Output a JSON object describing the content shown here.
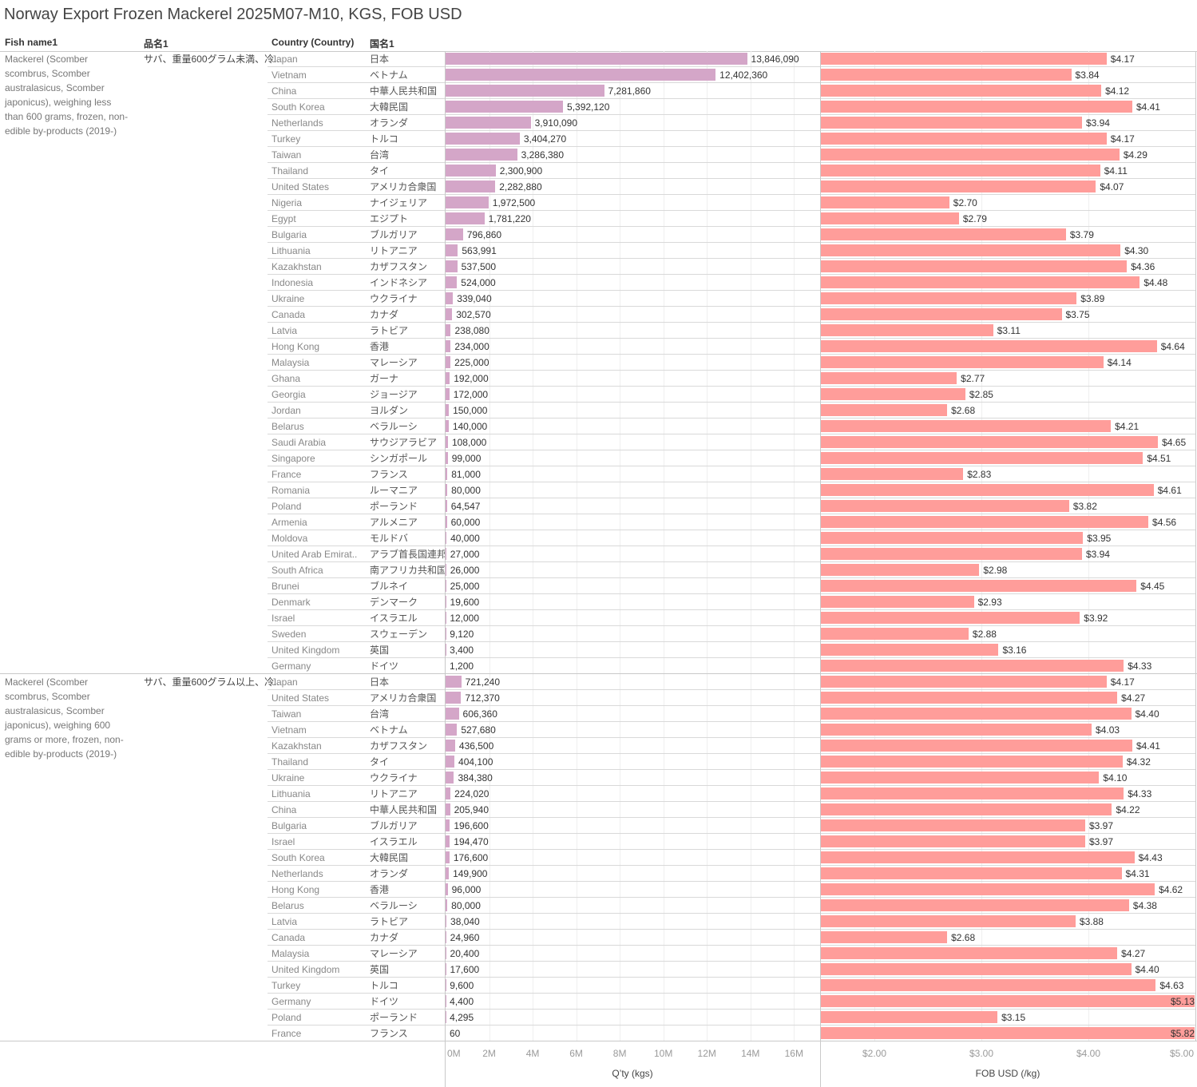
{
  "table_headers": {
    "fish_name": "Fish name1",
    "hinmei": "品名1",
    "country": "Country (Country)",
    "country_jp": "国名1"
  },
  "chart_data": {
    "type": "bar",
    "title": "Norway Export Frozen Mackerel 2025M07-M10, KGS, FOB USD",
    "grid": true,
    "measures": [
      {
        "key": "qty",
        "axis_label": "Q’ty (kgs)",
        "range": [
          0,
          17200000
        ],
        "ticks": [
          0,
          2000000,
          4000000,
          6000000,
          8000000,
          10000000,
          12000000,
          14000000,
          16000000
        ],
        "tick_labels": [
          "0M",
          "2M",
          "4M",
          "6M",
          "8M",
          "10M",
          "12M",
          "14M",
          "16M"
        ],
        "color": "#D4A6C8"
      },
      {
        "key": "fob",
        "axis_label": "FOB USD (/kg)",
        "range": [
          1.5,
          5.0
        ],
        "ticks": [
          2,
          3,
          4,
          5
        ],
        "tick_labels": [
          "$2.00",
          "$3.00",
          "$4.00",
          "$5.00"
        ],
        "color": "#FF9D9A"
      }
    ],
    "groups": [
      {
        "fish_name": "Mackerel (Scomber scombrus, Scomber australasicus, Scomber japonicus), weighing less than 600 grams, frozen, non-edible by-products (2019-)",
        "hinmei": "サバ、重量600グラム未満、冷..",
        "rows": [
          {
            "country": "Japan",
            "country_jp": "日本",
            "qty": 13846090,
            "qty_label": "13,846,090",
            "fob": 4.17,
            "fob_label": "$4.17"
          },
          {
            "country": "Vietnam",
            "country_jp": "ベトナム",
            "qty": 12402360,
            "qty_label": "12,402,360",
            "fob": 3.84,
            "fob_label": "$3.84"
          },
          {
            "country": "China",
            "country_jp": "中華人民共和国",
            "qty": 7281860,
            "qty_label": "7,281,860",
            "fob": 4.12,
            "fob_label": "$4.12"
          },
          {
            "country": "South Korea",
            "country_jp": "大韓民国",
            "qty": 5392120,
            "qty_label": "5,392,120",
            "fob": 4.41,
            "fob_label": "$4.41"
          },
          {
            "country": "Netherlands",
            "country_jp": "オランダ",
            "qty": 3910090,
            "qty_label": "3,910,090",
            "fob": 3.94,
            "fob_label": "$3.94"
          },
          {
            "country": "Turkey",
            "country_jp": "トルコ",
            "qty": 3404270,
            "qty_label": "3,404,270",
            "fob": 4.17,
            "fob_label": "$4.17"
          },
          {
            "country": "Taiwan",
            "country_jp": "台湾",
            "qty": 3286380,
            "qty_label": "3,286,380",
            "fob": 4.29,
            "fob_label": "$4.29"
          },
          {
            "country": "Thailand",
            "country_jp": "タイ",
            "qty": 2300900,
            "qty_label": "2,300,900",
            "fob": 4.11,
            "fob_label": "$4.11"
          },
          {
            "country": "United States",
            "country_jp": "アメリカ合衆国",
            "qty": 2282880,
            "qty_label": "2,282,880",
            "fob": 4.07,
            "fob_label": "$4.07"
          },
          {
            "country": "Nigeria",
            "country_jp": "ナイジェリア",
            "qty": 1972500,
            "qty_label": "1,972,500",
            "fob": 2.7,
            "fob_label": "$2.70"
          },
          {
            "country": "Egypt",
            "country_jp": "エジプト",
            "qty": 1781220,
            "qty_label": "1,781,220",
            "fob": 2.79,
            "fob_label": "$2.79"
          },
          {
            "country": "Bulgaria",
            "country_jp": "ブルガリア",
            "qty": 796860,
            "qty_label": "796,860",
            "fob": 3.79,
            "fob_label": "$3.79"
          },
          {
            "country": "Lithuania",
            "country_jp": "リトアニア",
            "qty": 563991,
            "qty_label": "563,991",
            "fob": 4.3,
            "fob_label": "$4.30"
          },
          {
            "country": "Kazakhstan",
            "country_jp": "カザフスタン",
            "qty": 537500,
            "qty_label": "537,500",
            "fob": 4.36,
            "fob_label": "$4.36"
          },
          {
            "country": "Indonesia",
            "country_jp": "インドネシア",
            "qty": 524000,
            "qty_label": "524,000",
            "fob": 4.48,
            "fob_label": "$4.48"
          },
          {
            "country": "Ukraine",
            "country_jp": "ウクライナ",
            "qty": 339040,
            "qty_label": "339,040",
            "fob": 3.89,
            "fob_label": "$3.89"
          },
          {
            "country": "Canada",
            "country_jp": "カナダ",
            "qty": 302570,
            "qty_label": "302,570",
            "fob": 3.75,
            "fob_label": "$3.75"
          },
          {
            "country": "Latvia",
            "country_jp": "ラトビア",
            "qty": 238080,
            "qty_label": "238,080",
            "fob": 3.11,
            "fob_label": "$3.11"
          },
          {
            "country": "Hong Kong",
            "country_jp": "香港",
            "qty": 234000,
            "qty_label": "234,000",
            "fob": 4.64,
            "fob_label": "$4.64"
          },
          {
            "country": "Malaysia",
            "country_jp": "マレーシア",
            "qty": 225000,
            "qty_label": "225,000",
            "fob": 4.14,
            "fob_label": "$4.14"
          },
          {
            "country": "Ghana",
            "country_jp": "ガーナ",
            "qty": 192000,
            "qty_label": "192,000",
            "fob": 2.77,
            "fob_label": "$2.77"
          },
          {
            "country": "Georgia",
            "country_jp": "ジョージア",
            "qty": 172000,
            "qty_label": "172,000",
            "fob": 2.85,
            "fob_label": "$2.85"
          },
          {
            "country": "Jordan",
            "country_jp": "ヨルダン",
            "qty": 150000,
            "qty_label": "150,000",
            "fob": 2.68,
            "fob_label": "$2.68"
          },
          {
            "country": "Belarus",
            "country_jp": "ベラルーシ",
            "qty": 140000,
            "qty_label": "140,000",
            "fob": 4.21,
            "fob_label": "$4.21"
          },
          {
            "country": "Saudi Arabia",
            "country_jp": "サウジアラビア",
            "qty": 108000,
            "qty_label": "108,000",
            "fob": 4.65,
            "fob_label": "$4.65"
          },
          {
            "country": "Singapore",
            "country_jp": "シンガポール",
            "qty": 99000,
            "qty_label": "99,000",
            "fob": 4.51,
            "fob_label": "$4.51"
          },
          {
            "country": "France",
            "country_jp": "フランス",
            "qty": 81000,
            "qty_label": "81,000",
            "fob": 2.83,
            "fob_label": "$2.83"
          },
          {
            "country": "Romania",
            "country_jp": "ルーマニア",
            "qty": 80000,
            "qty_label": "80,000",
            "fob": 4.61,
            "fob_label": "$4.61"
          },
          {
            "country": "Poland",
            "country_jp": "ポーランド",
            "qty": 64547,
            "qty_label": "64,547",
            "fob": 3.82,
            "fob_label": "$3.82"
          },
          {
            "country": "Armenia",
            "country_jp": "アルメニア",
            "qty": 60000,
            "qty_label": "60,000",
            "fob": 4.56,
            "fob_label": "$4.56"
          },
          {
            "country": "Moldova",
            "country_jp": "モルドバ",
            "qty": 40000,
            "qty_label": "40,000",
            "fob": 3.95,
            "fob_label": "$3.95"
          },
          {
            "country": "United Arab Emirat..",
            "country_jp": "アラブ首長国連邦",
            "qty": 27000,
            "qty_label": "27,000",
            "fob": 3.94,
            "fob_label": "$3.94"
          },
          {
            "country": "South Africa",
            "country_jp": "南アフリカ共和国",
            "qty": 26000,
            "qty_label": "26,000",
            "fob": 2.98,
            "fob_label": "$2.98"
          },
          {
            "country": "Brunei",
            "country_jp": "ブルネイ",
            "qty": 25000,
            "qty_label": "25,000",
            "fob": 4.45,
            "fob_label": "$4.45"
          },
          {
            "country": "Denmark",
            "country_jp": "デンマーク",
            "qty": 19600,
            "qty_label": "19,600",
            "fob": 2.93,
            "fob_label": "$2.93"
          },
          {
            "country": "Israel",
            "country_jp": "イスラエル",
            "qty": 12000,
            "qty_label": "12,000",
            "fob": 3.92,
            "fob_label": "$3.92"
          },
          {
            "country": "Sweden",
            "country_jp": "スウェーデン",
            "qty": 9120,
            "qty_label": "9,120",
            "fob": 2.88,
            "fob_label": "$2.88"
          },
          {
            "country": "United Kingdom",
            "country_jp": "英国",
            "qty": 3400,
            "qty_label": "3,400",
            "fob": 3.16,
            "fob_label": "$3.16"
          },
          {
            "country": "Germany",
            "country_jp": "ドイツ",
            "qty": 1200,
            "qty_label": "1,200",
            "fob": 4.33,
            "fob_label": "$4.33"
          }
        ]
      },
      {
        "fish_name": "Mackerel (Scomber scombrus, Scomber australasicus, Scomber japonicus), weighing 600 grams or more, frozen, non-edible by-products (2019-)",
        "hinmei": "サバ、重量600グラム以上、冷..",
        "rows": [
          {
            "country": "Japan",
            "country_jp": "日本",
            "qty": 721240,
            "qty_label": "721,240",
            "fob": 4.17,
            "fob_label": "$4.17"
          },
          {
            "country": "United States",
            "country_jp": "アメリカ合衆国",
            "qty": 712370,
            "qty_label": "712,370",
            "fob": 4.27,
            "fob_label": "$4.27"
          },
          {
            "country": "Taiwan",
            "country_jp": "台湾",
            "qty": 606360,
            "qty_label": "606,360",
            "fob": 4.4,
            "fob_label": "$4.40"
          },
          {
            "country": "Vietnam",
            "country_jp": "ベトナム",
            "qty": 527680,
            "qty_label": "527,680",
            "fob": 4.03,
            "fob_label": "$4.03"
          },
          {
            "country": "Kazakhstan",
            "country_jp": "カザフスタン",
            "qty": 436500,
            "qty_label": "436,500",
            "fob": 4.41,
            "fob_label": "$4.41"
          },
          {
            "country": "Thailand",
            "country_jp": "タイ",
            "qty": 404100,
            "qty_label": "404,100",
            "fob": 4.32,
            "fob_label": "$4.32"
          },
          {
            "country": "Ukraine",
            "country_jp": "ウクライナ",
            "qty": 384380,
            "qty_label": "384,380",
            "fob": 4.1,
            "fob_label": "$4.10"
          },
          {
            "country": "Lithuania",
            "country_jp": "リトアニア",
            "qty": 224020,
            "qty_label": "224,020",
            "fob": 4.33,
            "fob_label": "$4.33"
          },
          {
            "country": "China",
            "country_jp": "中華人民共和国",
            "qty": 205940,
            "qty_label": "205,940",
            "fob": 4.22,
            "fob_label": "$4.22"
          },
          {
            "country": "Bulgaria",
            "country_jp": "ブルガリア",
            "qty": 196600,
            "qty_label": "196,600",
            "fob": 3.97,
            "fob_label": "$3.97"
          },
          {
            "country": "Israel",
            "country_jp": "イスラエル",
            "qty": 194470,
            "qty_label": "194,470",
            "fob": 3.97,
            "fob_label": "$3.97"
          },
          {
            "country": "South Korea",
            "country_jp": "大韓民国",
            "qty": 176600,
            "qty_label": "176,600",
            "fob": 4.43,
            "fob_label": "$4.43"
          },
          {
            "country": "Netherlands",
            "country_jp": "オランダ",
            "qty": 149900,
            "qty_label": "149,900",
            "fob": 4.31,
            "fob_label": "$4.31"
          },
          {
            "country": "Hong Kong",
            "country_jp": "香港",
            "qty": 96000,
            "qty_label": "96,000",
            "fob": 4.62,
            "fob_label": "$4.62"
          },
          {
            "country": "Belarus",
            "country_jp": "ベラルーシ",
            "qty": 80000,
            "qty_label": "80,000",
            "fob": 4.38,
            "fob_label": "$4.38"
          },
          {
            "country": "Latvia",
            "country_jp": "ラトビア",
            "qty": 38040,
            "qty_label": "38,040",
            "fob": 3.88,
            "fob_label": "$3.88"
          },
          {
            "country": "Canada",
            "country_jp": "カナダ",
            "qty": 24960,
            "qty_label": "24,960",
            "fob": 2.68,
            "fob_label": "$2.68"
          },
          {
            "country": "Malaysia",
            "country_jp": "マレーシア",
            "qty": 20400,
            "qty_label": "20,400",
            "fob": 4.27,
            "fob_label": "$4.27"
          },
          {
            "country": "United Kingdom",
            "country_jp": "英国",
            "qty": 17600,
            "qty_label": "17,600",
            "fob": 4.4,
            "fob_label": "$4.40"
          },
          {
            "country": "Turkey",
            "country_jp": "トルコ",
            "qty": 9600,
            "qty_label": "9,600",
            "fob": 4.63,
            "fob_label": "$4.63"
          },
          {
            "country": "Germany",
            "country_jp": "ドイツ",
            "qty": 4400,
            "qty_label": "4,400",
            "fob": 5.13,
            "fob_label": "$5.13"
          },
          {
            "country": "Poland",
            "country_jp": "ポーランド",
            "qty": 4295,
            "qty_label": "4,295",
            "fob": 3.15,
            "fob_label": "$3.15"
          },
          {
            "country": "France",
            "country_jp": "フランス",
            "qty": 60,
            "qty_label": "60",
            "fob": 5.82,
            "fob_label": "$5.82"
          }
        ]
      }
    ]
  }
}
